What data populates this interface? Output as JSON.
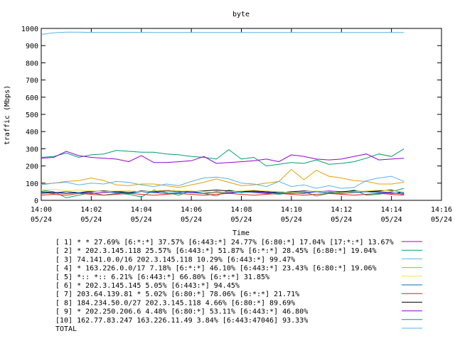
{
  "chart_data": {
    "type": "line",
    "title": "byte",
    "xlabel": "Time",
    "ylabel": "traffic (Mbps)",
    "ylim": [
      0,
      1000
    ],
    "yticks": [
      0,
      100,
      200,
      300,
      400,
      500,
      600,
      700,
      800,
      900,
      1000
    ],
    "xlim": [
      0,
      16
    ],
    "xticks": [
      {
        "v": 0,
        "time": "14:00",
        "date": "05/24"
      },
      {
        "v": 2,
        "time": "14:02",
        "date": "05/24"
      },
      {
        "v": 4,
        "time": "14:04",
        "date": "05/24"
      },
      {
        "v": 6,
        "time": "14:06",
        "date": "05/24"
      },
      {
        "v": 8,
        "time": "14:08",
        "date": "05/24"
      },
      {
        "v": 10,
        "time": "14:10",
        "date": "05/24"
      },
      {
        "v": 12,
        "time": "14:12",
        "date": "05/24"
      },
      {
        "v": 14,
        "time": "14:14",
        "date": "05/24"
      },
      {
        "v": 16,
        "time": "14:16",
        "date": "05/24"
      }
    ],
    "grid": false,
    "legend_position": "bottom",
    "x": [
      0,
      0.5,
      1,
      1.5,
      2,
      2.5,
      3,
      3.5,
      4,
      4.5,
      5,
      5.5,
      6,
      6.5,
      7,
      7.5,
      8,
      8.5,
      9,
      9.5,
      10,
      10.5,
      11,
      11.5,
      12,
      12.5,
      13,
      13.5,
      14,
      14.5
    ],
    "series": [
      {
        "name": "[ 1] * * 27.69%  [6:*:*] 37.57% [6:443:*] 24.77% [6:80:*] 17.04% [17:*:*] 13.67%",
        "color": "#9400d3",
        "values": [
          245,
          250,
          285,
          260,
          250,
          245,
          240,
          225,
          260,
          220,
          220,
          225,
          230,
          255,
          215,
          220,
          225,
          230,
          240,
          225,
          265,
          255,
          240,
          235,
          240,
          255,
          270,
          235,
          240,
          245
        ]
      },
      {
        "name": "[ 2] * 202.3.145.118 25.57%  [6:443:*] 51.87% [6:*:*] 28.45% [6:80:*] 19.04%",
        "color": "#009e73",
        "values": [
          250,
          255,
          275,
          250,
          265,
          270,
          290,
          285,
          280,
          280,
          270,
          265,
          255,
          250,
          240,
          295,
          240,
          250,
          200,
          210,
          220,
          215,
          235,
          210,
          215,
          225,
          245,
          270,
          255,
          300
        ]
      },
      {
        "name": "[ 3] 74.141.0.0/16 202.3.145.118 10.29%  [6:443:*] 99.47%",
        "color": "#56b4e9",
        "values": [
          90,
          100,
          105,
          90,
          100,
          95,
          110,
          105,
          90,
          80,
          95,
          85,
          110,
          130,
          135,
          125,
          100,
          95,
          80,
          110,
          80,
          90,
          70,
          85,
          70,
          75,
          115,
          130,
          140,
          110
        ]
      },
      {
        "name": "[ 4] * 163.226.0.0/17 7.18%  [6:*:*] 46.10% [6:443:*] 23.43% [6:80:*] 19.06%",
        "color": "#e69f00",
        "values": [
          95,
          100,
          110,
          115,
          130,
          115,
          90,
          85,
          95,
          95,
          85,
          75,
          90,
          105,
          125,
          105,
          85,
          90,
          100,
          110,
          180,
          120,
          175,
          140,
          130,
          115,
          110,
          95,
          95,
          105
        ]
      },
      {
        "name": "[ 5] *:: *:: 6.21%  [6:443:*] 66.80% [6:*:*] 31.85%",
        "color": "#f0e442",
        "values": [
          60,
          65,
          55,
          60,
          55,
          50,
          55,
          55,
          50,
          55,
          60,
          55,
          55,
          50,
          45,
          50,
          55,
          60,
          55,
          50,
          45,
          50,
          55,
          50,
          45,
          50,
          55,
          60,
          55,
          50
        ]
      },
      {
        "name": "[ 6] * 202.3.145.145 5.05%  [6:443:*] 94.45%",
        "color": "#0072b2",
        "values": [
          45,
          40,
          50,
          45,
          55,
          50,
          45,
          40,
          50,
          45,
          40,
          45,
          50,
          40,
          45,
          40,
          50,
          45,
          40,
          45,
          40,
          45,
          50,
          45,
          40,
          45,
          50,
          45,
          40,
          45
        ]
      },
      {
        "name": "[ 7] 203.64.139.81 * 5.02%  [6:80:*] 78.06% [6:*:*] 21.71%",
        "color": "#e51e10",
        "values": [
          30,
          35,
          30,
          40,
          35,
          30,
          35,
          40,
          35,
          30,
          35,
          40,
          35,
          30,
          35,
          40,
          35,
          30,
          35,
          40,
          35,
          30,
          35,
          40,
          35,
          30,
          35,
          40,
          35,
          30
        ]
      },
      {
        "name": "[ 8] 184.234.50.0/27 202.3.145.118 4.66%  [6:80:*] 89.69%",
        "color": "#000000",
        "values": [
          50,
          45,
          40,
          45,
          50,
          55,
          50,
          45,
          55,
          50,
          60,
          55,
          50,
          55,
          60,
          55,
          50,
          55,
          50,
          45,
          50,
          55,
          50,
          45,
          50,
          55,
          50,
          55,
          60,
          40
        ]
      },
      {
        "name": "[ 9] * 202.250.206.6 4.48%  [6:80:*] 53.11% [6:443:*] 46.80%",
        "color": "#9400d3",
        "values": [
          40,
          45,
          50,
          45,
          40,
          45,
          50,
          55,
          50,
          45,
          55,
          50,
          45,
          40,
          50,
          45,
          55,
          50,
          45,
          50,
          45,
          40,
          50,
          55,
          50,
          45,
          55,
          50,
          45,
          35
        ]
      },
      {
        "name": "[10] 162.77.83.247 163.226.11.49 3.84%  [6:443:47046] 93.33%",
        "color": "#009e73",
        "values": [
          60,
          50,
          15,
          30,
          45,
          30,
          40,
          35,
          20,
          60,
          45,
          30,
          55,
          40,
          25,
          60,
          45,
          55,
          40,
          35,
          45,
          50,
          25,
          40,
          45,
          60,
          30,
          35,
          50,
          70
        ]
      },
      {
        "name": "TOTAL",
        "color": "#56b4e9",
        "values": [
          965,
          975,
          978,
          978,
          977,
          977,
          977,
          977,
          977,
          976,
          976,
          976,
          976,
          976,
          976,
          976,
          976,
          976,
          976,
          976,
          976,
          976,
          976,
          976,
          976,
          976,
          976,
          976,
          976,
          976
        ]
      }
    ]
  }
}
